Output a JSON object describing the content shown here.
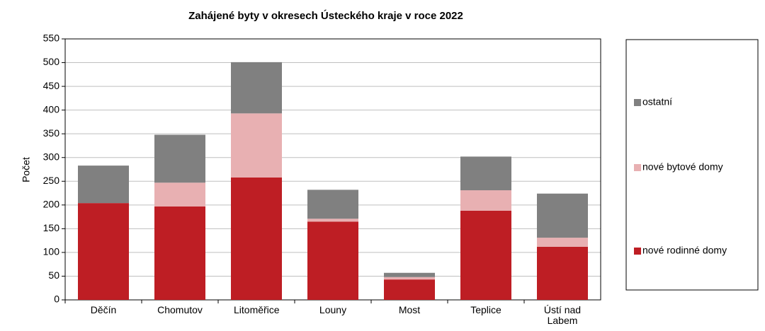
{
  "chart_data": {
    "type": "stacked_bar",
    "title": "Zahájené byty v okresech Ústeckého kraje v roce 2022",
    "y_label": "Počet",
    "categories": [
      "Děčín",
      "Chomutov",
      "Litoměřice",
      "Louny",
      "Most",
      "Teplice",
      "Ústí nad Labem"
    ],
    "series": [
      {
        "name": "nové rodinné domy",
        "color": "#be1e24",
        "values": [
          204,
          197,
          258,
          165,
          43,
          188,
          112
        ]
      },
      {
        "name": "nové bytové domy",
        "color": "#e8b0b2",
        "values": [
          0,
          50,
          135,
          6,
          5,
          43,
          19
        ]
      },
      {
        "name": "ostatní",
        "color": "#808080",
        "values": [
          79,
          101,
          108,
          61,
          9,
          71,
          93
        ]
      }
    ],
    "ylim": [
      0,
      550
    ],
    "yticks": [
      0,
      50,
      100,
      150,
      200,
      250,
      300,
      350,
      400,
      450,
      500,
      550
    ],
    "grid": true
  }
}
